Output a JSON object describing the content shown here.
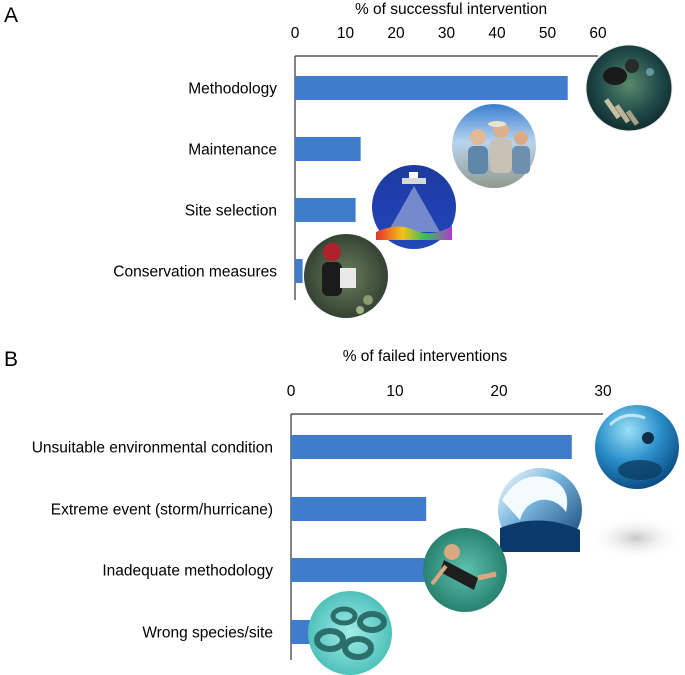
{
  "chart_data": [
    {
      "type": "bar",
      "orientation": "horizontal",
      "panel_label": "A",
      "xlabel": "% of successful intervention",
      "xaxis_position": "top",
      "xlim": [
        0,
        60
      ],
      "ticks": [
        0,
        10,
        20,
        30,
        40,
        50,
        60
      ],
      "categories": [
        "Methodology",
        "Maintenance",
        "Site selection",
        "Conservation measures"
      ],
      "values": [
        54,
        13,
        12,
        1.5
      ],
      "bar_color": "#3f7ccc",
      "grid": false,
      "photos": [
        "diver-with-coral-nursery-photo",
        "people-at-meeting-photo",
        "sonar-seafloor-map-photo",
        "person-monitoring-reef-photo"
      ]
    },
    {
      "type": "bar",
      "orientation": "horizontal",
      "panel_label": "B",
      "xlabel": "% of failed interventions",
      "xaxis_position": "top",
      "xlim": [
        0,
        30
      ],
      "ticks": [
        0,
        10,
        20,
        30
      ],
      "categories": [
        "Unsuitable environmental condition",
        "Extreme event (storm/hurricane)",
        "Inadequate methodology",
        "Wrong species/site"
      ],
      "values": [
        27,
        13,
        13,
        3.5
      ],
      "bar_color": "#3f7ccc",
      "grid": false,
      "photos": [
        "underwater-diver-photo",
        "breaking-wave-photo",
        "snorkeler-photo",
        "tire-reef-photo"
      ]
    }
  ]
}
